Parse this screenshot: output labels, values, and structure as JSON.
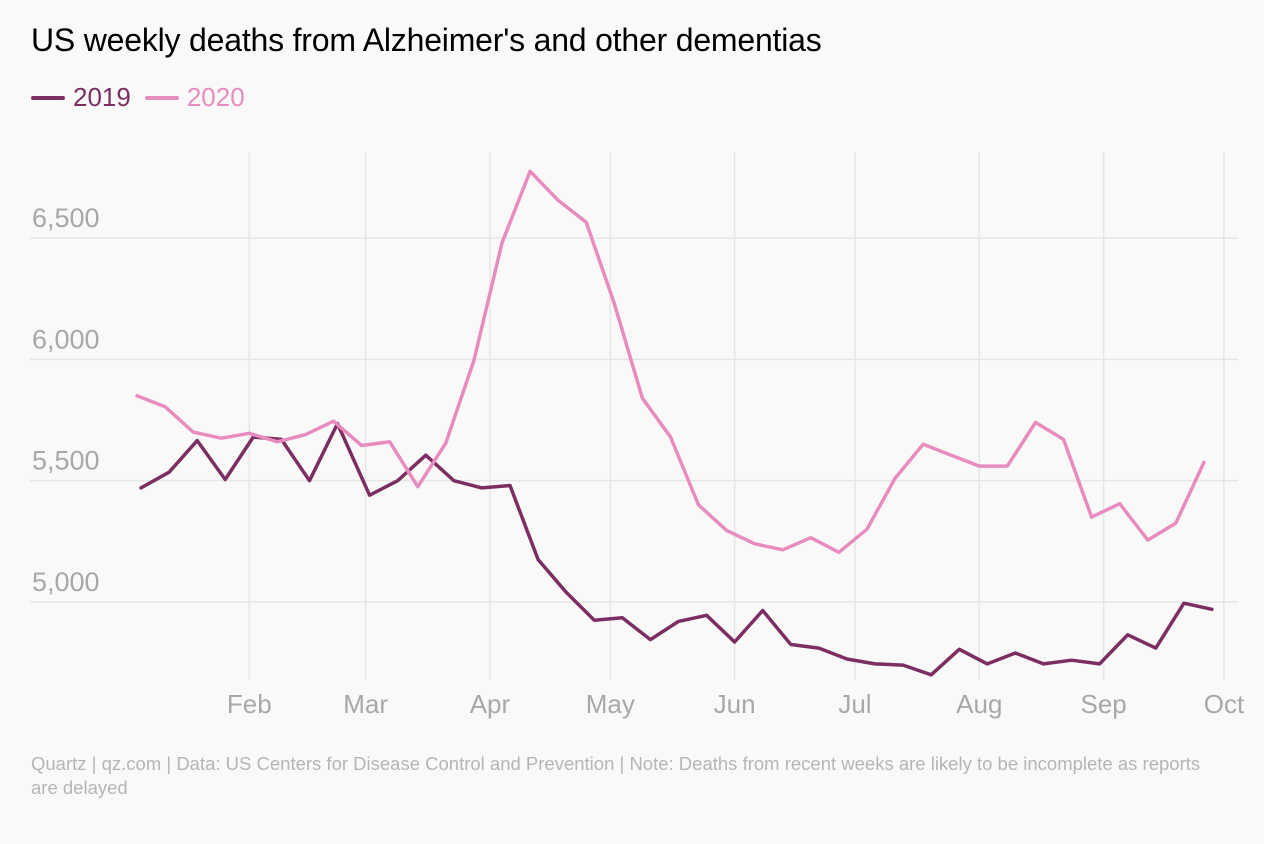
{
  "footer_text": "Quartz | qz.com | Data: US Centers for Disease Control and Prevention | Note: Deaths from recent weeks are likely to be incomplete as reports are delayed",
  "colors": {
    "s2019": "#7c2e62",
    "s2020": "#e88cc0",
    "grid": "#e6e6e6",
    "tick_text": "#a8a8a8"
  },
  "chart_data": {
    "type": "line",
    "title": "US weekly deaths from Alzheimer's and other dementias",
    "xlabel": "",
    "ylabel": "",
    "x_unit": "week ending date (month-day)",
    "x_ticks": [
      {
        "label": "Feb",
        "date": "02-01"
      },
      {
        "label": "Mar",
        "date": "03-01"
      },
      {
        "label": "Apr",
        "date": "04-01"
      },
      {
        "label": "May",
        "date": "05-01"
      },
      {
        "label": "Jun",
        "date": "06-01"
      },
      {
        "label": "Jul",
        "date": "07-01"
      },
      {
        "label": "Aug",
        "date": "08-01"
      },
      {
        "label": "Sep",
        "date": "09-01"
      },
      {
        "label": "Oct",
        "date": "10-01"
      }
    ],
    "y_ticks": [
      5000,
      5500,
      6000,
      6500
    ],
    "y_tick_labels": [
      "5,000",
      "5,500",
      "6,000",
      "6,500"
    ],
    "ylim": [
      4700,
      6850
    ],
    "xlim": [
      "01-04",
      "10-03"
    ],
    "grid": true,
    "legend": "top-left",
    "series": [
      {
        "name": "2019",
        "color_key": "s2019",
        "points": [
          [
            "01-05",
            5470
          ],
          [
            "01-12",
            5535
          ],
          [
            "01-19",
            5665
          ],
          [
            "01-26",
            5505
          ],
          [
            "02-02",
            5680
          ],
          [
            "02-09",
            5670
          ],
          [
            "02-16",
            5500
          ],
          [
            "02-23",
            5735
          ],
          [
            "03-02",
            5440
          ],
          [
            "03-09",
            5500
          ],
          [
            "03-16",
            5605
          ],
          [
            "03-23",
            5500
          ],
          [
            "03-30",
            5470
          ],
          [
            "04-06",
            5480
          ],
          [
            "04-13",
            5175
          ],
          [
            "04-20",
            5040
          ],
          [
            "04-27",
            4925
          ],
          [
            "05-04",
            4935
          ],
          [
            "05-11",
            4845
          ],
          [
            "05-18",
            4920
          ],
          [
            "05-25",
            4945
          ],
          [
            "06-01",
            4835
          ],
          [
            "06-08",
            4965
          ],
          [
            "06-15",
            4825
          ],
          [
            "06-22",
            4810
          ],
          [
            "06-29",
            4765
          ],
          [
            "07-06",
            4745
          ],
          [
            "07-13",
            4740
          ],
          [
            "07-20",
            4700
          ],
          [
            "07-27",
            4805
          ],
          [
            "08-03",
            4745
          ],
          [
            "08-10",
            4790
          ],
          [
            "08-17",
            4745
          ],
          [
            "08-24",
            4760
          ],
          [
            "08-31",
            4745
          ],
          [
            "09-07",
            4865
          ],
          [
            "09-14",
            4810
          ],
          [
            "09-21",
            4995
          ],
          [
            "09-28",
            4970
          ]
        ]
      },
      {
        "name": "2020",
        "color_key": "s2020",
        "points": [
          [
            "01-04",
            5850
          ],
          [
            "01-11",
            5805
          ],
          [
            "01-18",
            5700
          ],
          [
            "01-25",
            5675
          ],
          [
            "02-01",
            5695
          ],
          [
            "02-08",
            5660
          ],
          [
            "02-15",
            5690
          ],
          [
            "02-22",
            5745
          ],
          [
            "02-29",
            5645
          ],
          [
            "03-07",
            5660
          ],
          [
            "03-14",
            5475
          ],
          [
            "03-21",
            5655
          ],
          [
            "03-28",
            5995
          ],
          [
            "04-04",
            6480
          ],
          [
            "04-11",
            6775
          ],
          [
            "04-18",
            6655
          ],
          [
            "04-25",
            6565
          ],
          [
            "05-02",
            6230
          ],
          [
            "05-09",
            5840
          ],
          [
            "05-16",
            5680
          ],
          [
            "05-23",
            5400
          ],
          [
            "05-30",
            5295
          ],
          [
            "06-06",
            5240
          ],
          [
            "06-13",
            5215
          ],
          [
            "06-20",
            5265
          ],
          [
            "06-27",
            5205
          ],
          [
            "07-04",
            5300
          ],
          [
            "07-11",
            5510
          ],
          [
            "07-18",
            5650
          ],
          [
            "07-25",
            5605
          ],
          [
            "08-01",
            5560
          ],
          [
            "08-08",
            5560
          ],
          [
            "08-15",
            5740
          ],
          [
            "08-22",
            5670
          ],
          [
            "08-29",
            5350
          ],
          [
            "09-05",
            5405
          ],
          [
            "09-12",
            5255
          ],
          [
            "09-19",
            5325
          ],
          [
            "09-26",
            5575
          ]
        ]
      }
    ]
  }
}
